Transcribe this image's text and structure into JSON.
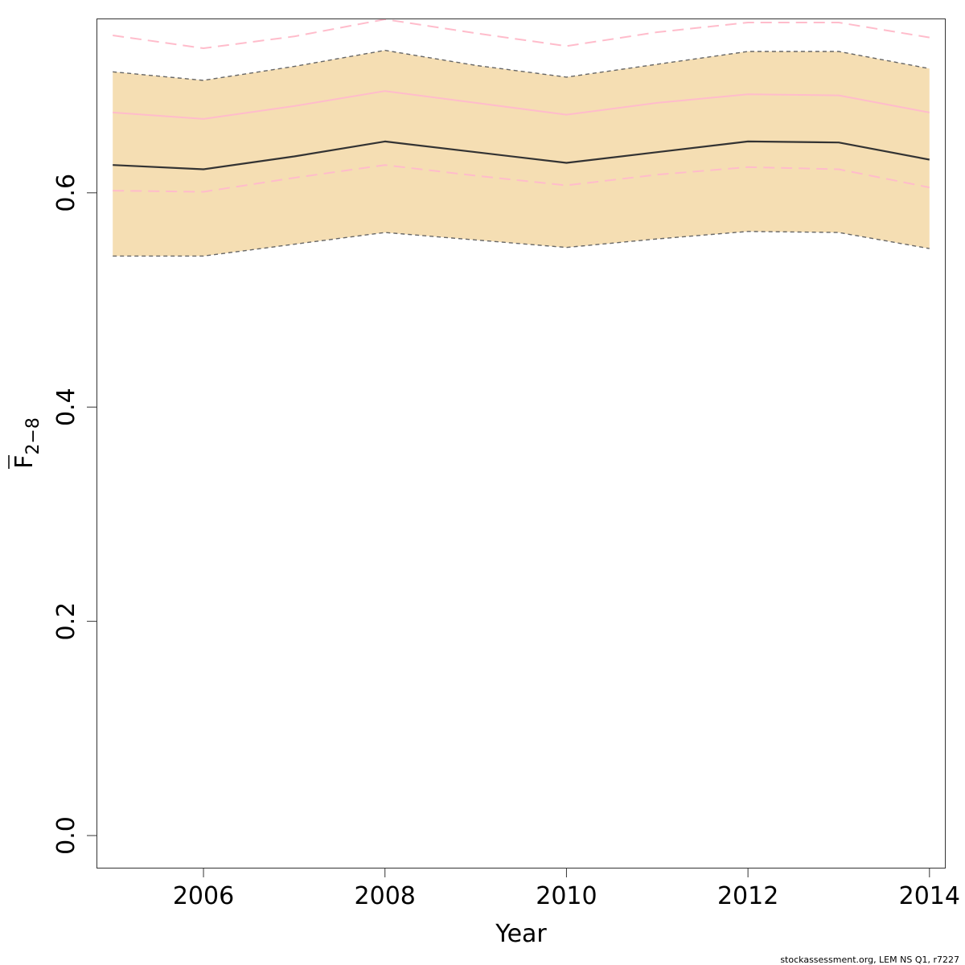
{
  "chart_data": {
    "type": "line",
    "xlabel": "Year",
    "ylabel": {
      "main": "F",
      "subscript": "2−8"
    },
    "x_ticks": [
      "2006",
      "2008",
      "2010",
      "2012",
      "2014"
    ],
    "y_ticks": [
      "0.0",
      "0.2",
      "0.4",
      "0.6"
    ],
    "xlim": [
      2004.83,
      2014.17
    ],
    "ylim": [
      -0.03,
      0.762
    ],
    "grid": false,
    "legend": "none",
    "x": [
      2005,
      2006,
      2007,
      2008,
      2009,
      2010,
      2011,
      2012,
      2013,
      2014
    ],
    "series": [
      {
        "role": "estimate",
        "style": "solid",
        "color": "#333333",
        "values": [
          0.626,
          0.622,
          0.634,
          0.648,
          0.638,
          0.628,
          0.638,
          0.648,
          0.647,
          0.631
        ]
      },
      {
        "role": "band_upper",
        "style": "dashed",
        "color": "#666666",
        "values": [
          0.713,
          0.705,
          0.718,
          0.733,
          0.719,
          0.708,
          0.72,
          0.732,
          0.732,
          0.716
        ]
      },
      {
        "role": "band_lower",
        "style": "dashed",
        "color": "#666666",
        "values": [
          0.541,
          0.541,
          0.552,
          0.563,
          0.556,
          0.549,
          0.557,
          0.564,
          0.563,
          0.548
        ]
      },
      {
        "role": "alt_estimate",
        "style": "solid",
        "color": "#ffbccb",
        "values": [
          0.675,
          0.669,
          0.681,
          0.695,
          0.684,
          0.673,
          0.684,
          0.692,
          0.691,
          0.675
        ]
      },
      {
        "role": "alt_upper",
        "style": "dashed",
        "color": "#ffbccb",
        "values": [
          0.747,
          0.735,
          0.746,
          0.762,
          0.749,
          0.737,
          0.75,
          0.759,
          0.759,
          0.745
        ]
      },
      {
        "role": "alt_lower",
        "style": "dashed",
        "color": "#ffbccb",
        "values": [
          0.602,
          0.601,
          0.614,
          0.626,
          0.616,
          0.607,
          0.617,
          0.624,
          0.622,
          0.605
        ]
      }
    ],
    "band_fill_color": "#f5deb3",
    "footer": "stockassessment.org, LEM  NS Q1, r7227"
  }
}
